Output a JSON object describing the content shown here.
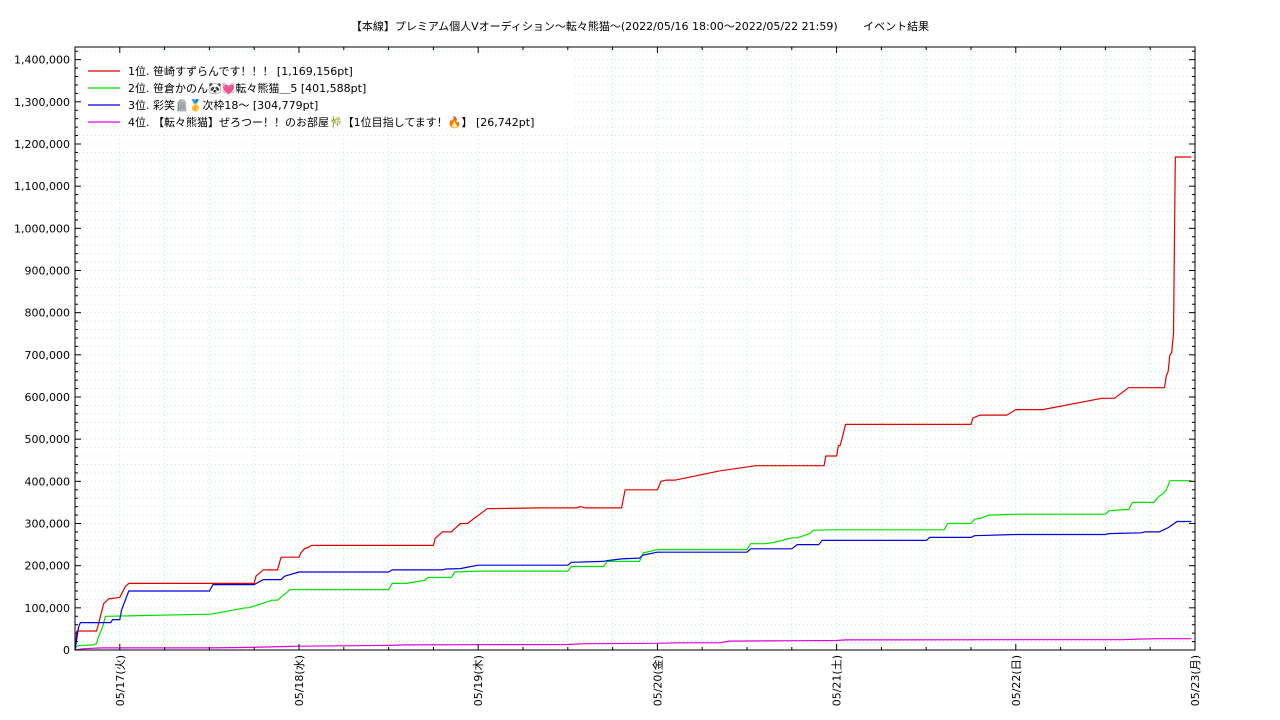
{
  "title": "【本線】プレミアム個人Vオーディション〜転々熊猫～(2022/05/16 18:00～2022/05/22 21:59)　　 イベント結果",
  "chart_data": {
    "type": "line",
    "title": "【本線】プレミアム個人Vオーディション〜転々熊猫～(2022/05/16 18:00～2022/05/22 21:59)　　 イベント結果",
    "xlabel": "",
    "ylabel": "",
    "ylim": [
      0,
      1430000
    ],
    "xlim": [
      -0.25,
      6.0
    ],
    "grid": true,
    "legend_position": "top-left",
    "y_ticks": [
      0,
      100000,
      200000,
      300000,
      400000,
      500000,
      600000,
      700000,
      800000,
      900000,
      1000000,
      1100000,
      1200000,
      1300000,
      1400000
    ],
    "y_tick_labels": [
      "0",
      "100,000",
      "200,000",
      "300,000",
      "400,000",
      "500,000",
      "600,000",
      "700,000",
      "800,000",
      "900,000",
      "1,000,000",
      "1,100,000",
      "1,200,000",
      "1,300,000",
      "1,400,000"
    ],
    "x_ticks": [
      0,
      1,
      2,
      3,
      4,
      5,
      6
    ],
    "x_tick_labels": [
      "05/17(火)",
      "05/18(水)",
      "05/19(木)",
      "05/20(金)",
      "05/21(土)",
      "05/22(日)",
      "05/23(月)"
    ],
    "series": [
      {
        "name": "1位. 笹崎すずらんです！！！ [1,169,156pt]",
        "color": "#e00000",
        "x": [
          -0.25,
          -0.24,
          -0.2,
          -0.13,
          -0.12,
          -0.09,
          -0.06,
          -0.05,
          0.0,
          0.03,
          0.05,
          0.2,
          0.75,
          0.76,
          0.8,
          0.88,
          0.9,
          1.0,
          1.01,
          1.03,
          1.05,
          1.07,
          1.2,
          1.35,
          1.75,
          1.76,
          1.8,
          1.85,
          1.9,
          1.94,
          2.05,
          2.35,
          2.55,
          2.57,
          2.6,
          2.8,
          2.82,
          3.0,
          3.02,
          3.05,
          3.1,
          3.35,
          3.55,
          3.56,
          3.6,
          3.65,
          3.7,
          3.82,
          3.83,
          3.93,
          3.94,
          4.0,
          4.01,
          4.02,
          4.05,
          4.6,
          4.75,
          4.76,
          4.8,
          4.95,
          5.0,
          5.01,
          5.05,
          5.15,
          5.48,
          5.49,
          5.55,
          5.63,
          5.64,
          5.72,
          5.8,
          5.83,
          5.84,
          5.85,
          5.86,
          5.87,
          5.88,
          5.89,
          5.9,
          5.96,
          5.98
        ],
        "y": [
          0,
          45000,
          45000,
          45000,
          60000,
          110000,
          122000,
          122000,
          125000,
          150000,
          158000,
          158000,
          158000,
          175000,
          190000,
          190000,
          220000,
          220000,
          230000,
          240000,
          243000,
          248000,
          248000,
          248000,
          248000,
          265000,
          280000,
          280000,
          300000,
          300000,
          335000,
          337000,
          337000,
          340000,
          337000,
          337000,
          380000,
          380000,
          400000,
          403000,
          403000,
          425000,
          437000,
          437000,
          437000,
          437000,
          437000,
          437000,
          437000,
          437000,
          460000,
          460000,
          485000,
          485000,
          535000,
          535000,
          535000,
          550000,
          557000,
          557000,
          570000,
          570000,
          570000,
          570000,
          597000,
          597000,
          597000,
          622000,
          622000,
          622000,
          622000,
          622000,
          650000,
          660000,
          700000,
          705000,
          750000,
          1169156,
          1169156,
          1169156,
          1169156
        ]
      },
      {
        "name": "2位. 笹倉かのん🐼💓転々熊猫＿5 [401,588pt]",
        "color": "#00e000",
        "x": [
          -0.25,
          -0.24,
          -0.15,
          -0.13,
          -0.12,
          -0.1,
          -0.08,
          0.5,
          0.51,
          0.7,
          0.72,
          0.85,
          0.88,
          0.95,
          1.5,
          1.52,
          1.6,
          1.7,
          1.72,
          1.85,
          1.87,
          2.0,
          2.5,
          2.52,
          2.7,
          2.72,
          2.9,
          2.92,
          3.0,
          3.5,
          3.52,
          3.6,
          3.65,
          3.75,
          3.78,
          3.85,
          3.87,
          4.0,
          4.6,
          4.62,
          4.75,
          4.77,
          4.8,
          4.85,
          5.0,
          5.5,
          5.52,
          5.6,
          5.63,
          5.65,
          5.75,
          5.77,
          5.8,
          5.82,
          5.84,
          5.86,
          5.9,
          5.98
        ],
        "y": [
          0,
          10000,
          12000,
          15000,
          30000,
          50000,
          80000,
          85000,
          85000,
          100000,
          100000,
          118000,
          118000,
          143000,
          143000,
          158000,
          158000,
          165000,
          172000,
          172000,
          185000,
          187000,
          187000,
          198000,
          198000,
          210000,
          210000,
          230000,
          238000,
          238000,
          252000,
          252000,
          255000,
          266000,
          266000,
          276000,
          284000,
          285000,
          285000,
          300000,
          300000,
          310000,
          312000,
          320000,
          322000,
          322000,
          330000,
          333000,
          333000,
          350000,
          350000,
          350000,
          365000,
          370000,
          380000,
          401588,
          401588,
          401588
        ]
      },
      {
        "name": "3位. 彩笑🪦🥇次枠18〜 [304,779pt]",
        "color": "#0000e0",
        "x": [
          -0.25,
          -0.23,
          -0.22,
          -0.05,
          -0.04,
          0.0,
          0.01,
          0.05,
          0.2,
          0.5,
          0.52,
          0.7,
          0.75,
          0.8,
          0.9,
          0.92,
          1.0,
          1.5,
          1.52,
          1.8,
          1.82,
          1.9,
          1.95,
          2.0,
          2.5,
          2.52,
          2.7,
          2.72,
          2.8,
          2.9,
          2.92,
          3.0,
          3.02,
          3.5,
          3.52,
          3.75,
          3.78,
          3.9,
          3.92,
          4.5,
          4.52,
          4.75,
          4.77,
          5.0,
          5.5,
          5.52,
          5.7,
          5.72,
          5.8,
          5.85,
          5.9,
          5.98
        ],
        "y": [
          0,
          55000,
          65000,
          65000,
          72000,
          72000,
          95000,
          140000,
          140000,
          140000,
          155000,
          155000,
          155000,
          167000,
          167000,
          175000,
          185000,
          185000,
          190000,
          190000,
          192000,
          193000,
          197000,
          201000,
          201000,
          208000,
          210000,
          212000,
          216000,
          218000,
          225000,
          232000,
          232000,
          232000,
          240000,
          240000,
          250000,
          250000,
          260000,
          260000,
          267000,
          267000,
          271000,
          274000,
          274000,
          276000,
          278000,
          280000,
          280000,
          290000,
          304779,
          304779
        ]
      },
      {
        "name": "4位. 【転々熊猫】ぜろつー！！のお部屋🎋【1位目指してます！🔥】 [26,742pt]",
        "color": "#e000e0",
        "x": [
          -0.25,
          -0.2,
          -0.1,
          0.5,
          0.7,
          0.9,
          1.0,
          1.5,
          1.6,
          2.0,
          2.5,
          2.6,
          3.0,
          3.1,
          3.35,
          3.4,
          3.6,
          3.8,
          4.0,
          4.05,
          5.0,
          5.6,
          5.7,
          5.8,
          5.98
        ],
        "y": [
          0,
          3000,
          5000,
          5000,
          6000,
          8000,
          9000,
          11000,
          12000,
          12500,
          13000,
          15000,
          16000,
          17000,
          17000,
          21000,
          21500,
          22000,
          22500,
          24000,
          24500,
          24500,
          26000,
          26742,
          26742
        ]
      }
    ]
  }
}
